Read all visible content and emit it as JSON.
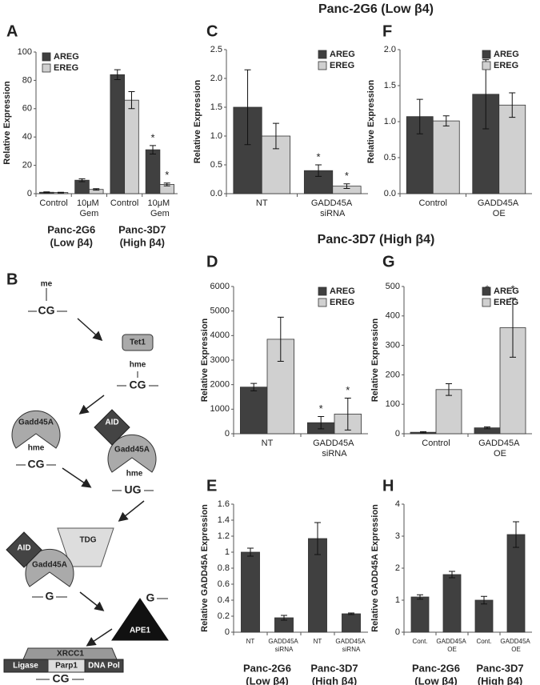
{
  "section_titles": [
    "Panc-2G6 (Low β4)",
    "Panc-3D7 (High β4)"
  ],
  "chart_data": [
    {
      "type": "bar",
      "panel": "A",
      "ylabel": "Relative Expression",
      "categories": [
        "Control",
        "10μM Gem",
        "Control",
        "10μM Gem"
      ],
      "group_labels": [
        [
          "Panc-2G6",
          "(Low β4)"
        ],
        [
          "Panc-3D7",
          "(High β4)"
        ]
      ],
      "series": [
        {
          "name": "AREG",
          "color": "#404040",
          "values": [
            1,
            9.5,
            84,
            31
          ],
          "errors": [
            0.3,
            1,
            3.5,
            3
          ],
          "annotations": [
            null,
            null,
            null,
            "*"
          ]
        },
        {
          "name": "EREG",
          "color": "#d0d0d0",
          "values": [
            0.8,
            3,
            66,
            6.5
          ],
          "errors": [
            0.2,
            0.5,
            6,
            1
          ],
          "annotations": [
            null,
            null,
            null,
            "*"
          ]
        }
      ],
      "ylim": [
        0,
        100
      ],
      "yticks": [
        0,
        20,
        40,
        60,
        80,
        100
      ],
      "legend": "upper left"
    },
    {
      "type": "bar",
      "panel": "C",
      "ylabel": "Relative Expression",
      "categories": [
        "NT",
        "GADD45A siRNA"
      ],
      "series": [
        {
          "name": "AREG",
          "color": "#404040",
          "values": [
            1.5,
            0.4
          ],
          "errors": [
            0.65,
            0.1
          ],
          "annotations": [
            null,
            "*"
          ]
        },
        {
          "name": "EREG",
          "color": "#d0d0d0",
          "values": [
            1.0,
            0.13
          ],
          "errors": [
            0.22,
            0.04
          ],
          "annotations": [
            null,
            "*"
          ]
        }
      ],
      "ylim": [
        0,
        2.5
      ],
      "yticks": [
        {
          "value": 0,
          "label": "0.0"
        },
        0.5,
        {
          "value": 1,
          "label": "1.0"
        },
        1.5,
        {
          "value": 2,
          "label": "2.0"
        },
        2.5
      ],
      "legend": "upper right"
    },
    {
      "type": "bar",
      "panel": "F",
      "ylabel": "Relative Expression",
      "categories": [
        "Control",
        "GADD45A OE"
      ],
      "series": [
        {
          "name": "AREG",
          "color": "#404040",
          "values": [
            1.07,
            1.38
          ],
          "errors": [
            0.24,
            0.48
          ]
        },
        {
          "name": "EREG",
          "color": "#d0d0d0",
          "values": [
            1.01,
            1.23
          ],
          "errors": [
            0.07,
            0.17
          ]
        }
      ],
      "ylim": [
        0,
        2
      ],
      "yticks": [
        {
          "value": 0,
          "label": "0.0"
        },
        0.5,
        {
          "value": 1,
          "label": "1.0"
        },
        1.5,
        {
          "value": 2,
          "label": "2.0"
        }
      ],
      "legend": "upper right"
    },
    {
      "type": "bar",
      "panel": "D",
      "ylabel": "Relative Expression",
      "categories": [
        "NT",
        "GADD45A siRNA"
      ],
      "series": [
        {
          "name": "AREG",
          "color": "#404040",
          "values": [
            1900,
            450
          ],
          "errors": [
            150,
            250
          ],
          "annotations": [
            null,
            "*"
          ]
        },
        {
          "name": "EREG",
          "color": "#d0d0d0",
          "values": [
            3850,
            800
          ],
          "errors": [
            900,
            650
          ],
          "annotations": [
            null,
            "*"
          ]
        }
      ],
      "ylim": [
        0,
        6000
      ],
      "yticks": [
        0,
        1000,
        2000,
        3000,
        4000,
        5000,
        6000
      ],
      "legend": "upper right"
    },
    {
      "type": "bar",
      "panel": "G",
      "ylabel": "Relative Expression",
      "categories": [
        "Control",
        "GADD45A OE"
      ],
      "series": [
        {
          "name": "AREG",
          "color": "#404040",
          "values": [
            5,
            20
          ],
          "errors": [
            2,
            3
          ],
          "annotations": [
            null,
            "*"
          ]
        },
        {
          "name": "EREG",
          "color": "#d0d0d0",
          "values": [
            150,
            360
          ],
          "errors": [
            20,
            100
          ],
          "annotations": [
            null,
            "*"
          ]
        }
      ],
      "annotation_position": "top",
      "ylim": [
        0,
        500
      ],
      "yticks": [
        0,
        100,
        200,
        300,
        400,
        500
      ],
      "legend": "upper right"
    },
    {
      "type": "bar",
      "panel": "E",
      "ylabel": "Relative GADD45A Expression",
      "categories": [
        "NT",
        "GADD45A siRNA",
        "NT",
        "GADD45A siRNA"
      ],
      "group_labels": [
        [
          "Panc-2G6",
          "(Low β4)"
        ],
        [
          "Panc-3D7",
          "(High β4)"
        ]
      ],
      "series": [
        {
          "color": "#404040",
          "values": [
            1.0,
            0.18,
            1.17,
            0.23
          ],
          "errors": [
            0.05,
            0.03,
            0.2,
            0.01
          ]
        }
      ],
      "ylim": [
        0,
        1.6
      ],
      "yticks": [
        0,
        0.2,
        0.4,
        0.6,
        0.8,
        1,
        1.2,
        1.4,
        1.6
      ]
    },
    {
      "type": "bar",
      "panel": "H",
      "ylabel": "Relative GADD45A Expression",
      "categories": [
        "Cont.",
        "GADD45A OE",
        "Cont.",
        "GADD45A OE"
      ],
      "group_labels": [
        [
          "Panc-2G6",
          "(Low β4)"
        ],
        [
          "Panc-3D7",
          "(High β4)"
        ]
      ],
      "series": [
        {
          "color": "#404040",
          "values": [
            1.1,
            1.8,
            1.0,
            3.05
          ],
          "errors": [
            0.07,
            0.1,
            0.12,
            0.4
          ]
        }
      ],
      "ylim": [
        0,
        4
      ],
      "yticks": [
        0,
        1,
        2,
        3,
        4
      ]
    }
  ],
  "diagram": {
    "panel": "B",
    "texts": [
      "me",
      "CG",
      "Tet1",
      "hme",
      "CG",
      "Gadd45A",
      "hme",
      "CG",
      "AID",
      "Gadd45A",
      "hme",
      "UG",
      "AID",
      "TDG",
      "Gadd45A",
      "G",
      "G",
      "APE1",
      "XRCC1",
      "Ligase",
      "Parp1",
      "DNA Pol",
      "CG"
    ]
  }
}
